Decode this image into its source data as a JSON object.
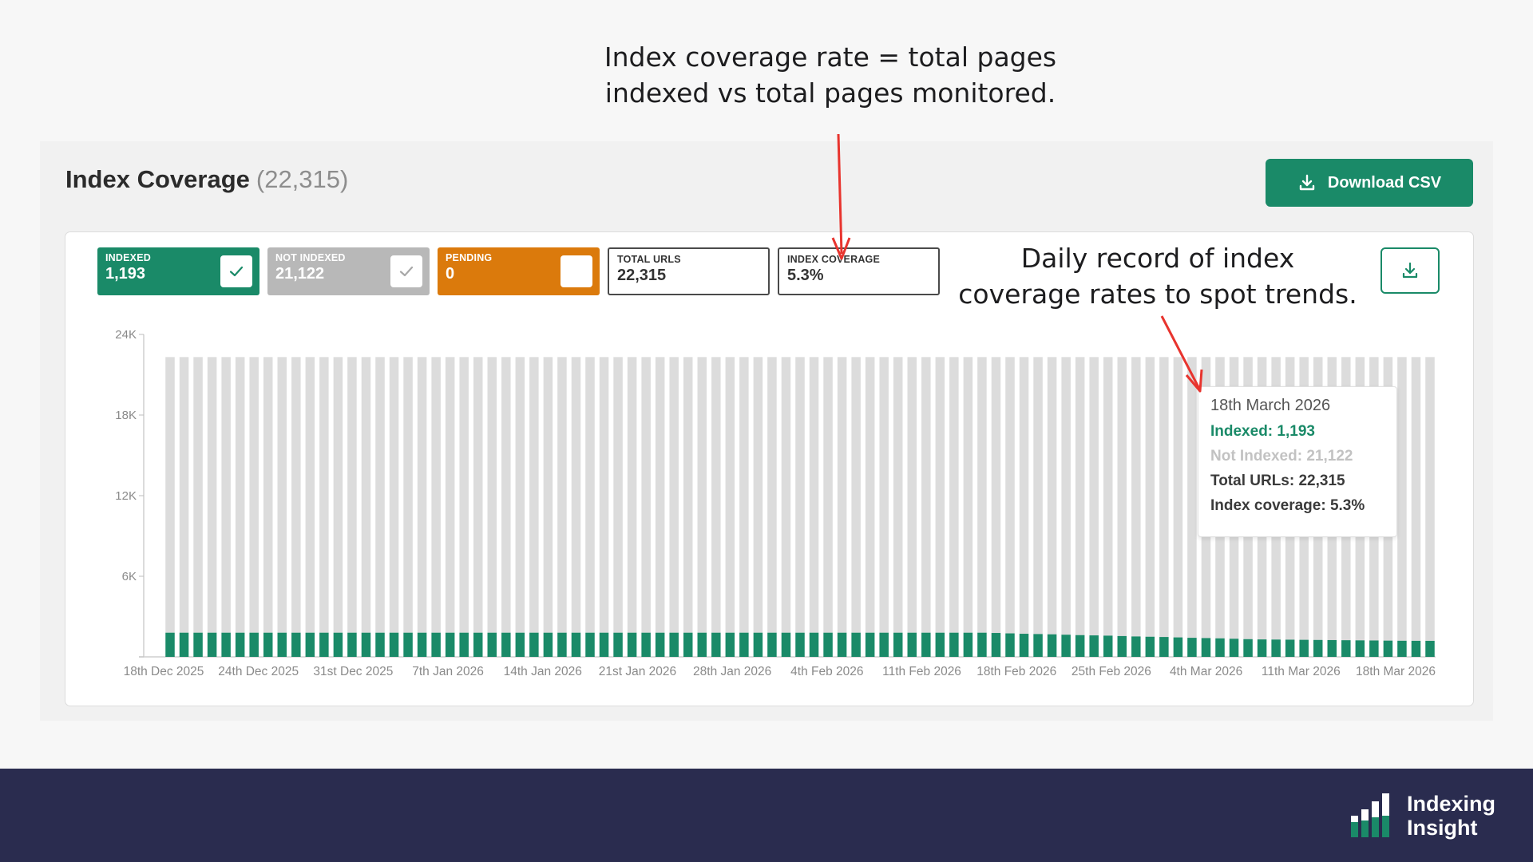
{
  "annotations": {
    "top_line1": "Index coverage rate = total pages",
    "top_line2": "indexed vs total pages monitored.",
    "right_line1": "Daily record of index",
    "right_line2": "coverage rates to spot trends."
  },
  "header": {
    "title": "Index Coverage",
    "count": "(22,315)",
    "download_label": "Download CSV"
  },
  "stats": {
    "indexed": {
      "label": "INDEXED",
      "value": "1,193"
    },
    "not_indexed": {
      "label": "NOT INDEXED",
      "value": "21,122"
    },
    "pending": {
      "label": "PENDING",
      "value": "0"
    },
    "total_urls": {
      "label": "TOTAL URLS",
      "value": "22,315"
    },
    "index_coverage": {
      "label": "INDEX COVERAGE",
      "value": "5.3%"
    }
  },
  "tooltip": {
    "date": "18th March 2026",
    "indexed": "Indexed: 1,193",
    "not_indexed": "Not Indexed: 21,122",
    "total": "Total URLs: 22,315",
    "coverage": "Index coverage: 5.3%"
  },
  "colors": {
    "indexed": "#1a8a68",
    "not_indexed": "#dcdcdc",
    "pending": "#db7a0c",
    "arrow": "#e8342e",
    "footer": "#2a2c4f"
  },
  "icons": {
    "download": "download-icon",
    "check": "check-icon",
    "logo": "bar-chart-logo-icon"
  },
  "brand": {
    "line1": "Indexing",
    "line2": "Insight"
  },
  "chart_data": {
    "type": "bar",
    "stacked": true,
    "ylim": [
      0,
      24000
    ],
    "yticks": [
      0,
      6000,
      12000,
      18000,
      24000
    ],
    "ytick_labels": [
      "",
      "6K",
      "12K",
      "18K",
      "24K"
    ],
    "tick_labels": [
      "18th Dec 2025",
      "24th Dec 2025",
      "31st Dec 2025",
      "7th Jan 2026",
      "14th Jan 2026",
      "21st Jan 2026",
      "28th Jan 2026",
      "4th Feb 2026",
      "11th Feb 2026",
      "18th Feb 2026",
      "25th Feb 2026",
      "4th Mar 2026",
      "11th Mar 2026",
      "18th Mar 2026"
    ],
    "x_start": "2025-12-18",
    "x_end": "2026-03-18",
    "series": [
      {
        "name": "Indexed",
        "values": [
          1800,
          1800,
          1800,
          1800,
          1800,
          1800,
          1800,
          1800,
          1800,
          1800,
          1800,
          1800,
          1800,
          1800,
          1800,
          1800,
          1800,
          1800,
          1800,
          1800,
          1800,
          1800,
          1800,
          1800,
          1800,
          1800,
          1800,
          1800,
          1800,
          1800,
          1800,
          1800,
          1800,
          1800,
          1800,
          1800,
          1800,
          1800,
          1800,
          1800,
          1800,
          1800,
          1800,
          1800,
          1800,
          1800,
          1800,
          1800,
          1800,
          1800,
          1800,
          1800,
          1800,
          1800,
          1800,
          1800,
          1800,
          1800,
          1800,
          1780,
          1750,
          1720,
          1700,
          1680,
          1650,
          1620,
          1600,
          1580,
          1550,
          1520,
          1500,
          1480,
          1450,
          1420,
          1400,
          1380,
          1350,
          1320,
          1300,
          1290,
          1280,
          1270,
          1260,
          1250,
          1240,
          1230,
          1220,
          1210,
          1200,
          1195,
          1193
        ]
      },
      {
        "name": "Not Indexed",
        "values": [
          20515,
          20515,
          20515,
          20515,
          20515,
          20515,
          20515,
          20515,
          20515,
          20515,
          20515,
          20515,
          20515,
          20515,
          20515,
          20515,
          20515,
          20515,
          20515,
          20515,
          20515,
          20515,
          20515,
          20515,
          20515,
          20515,
          20515,
          20515,
          20515,
          20515,
          20515,
          20515,
          20515,
          20515,
          20515,
          20515,
          20515,
          20515,
          20515,
          20515,
          20515,
          20515,
          20515,
          20515,
          20515,
          20515,
          20515,
          20515,
          20515,
          20515,
          20515,
          20515,
          20515,
          20515,
          20515,
          20515,
          20515,
          20515,
          20515,
          20535,
          20565,
          20595,
          20615,
          20635,
          20665,
          20695,
          20715,
          20735,
          20765,
          20795,
          20815,
          20835,
          20865,
          20895,
          20915,
          20935,
          20965,
          20995,
          21015,
          21025,
          21035,
          21045,
          21055,
          21065,
          21075,
          21085,
          21095,
          21105,
          21115,
          21120,
          21122
        ]
      }
    ]
  }
}
